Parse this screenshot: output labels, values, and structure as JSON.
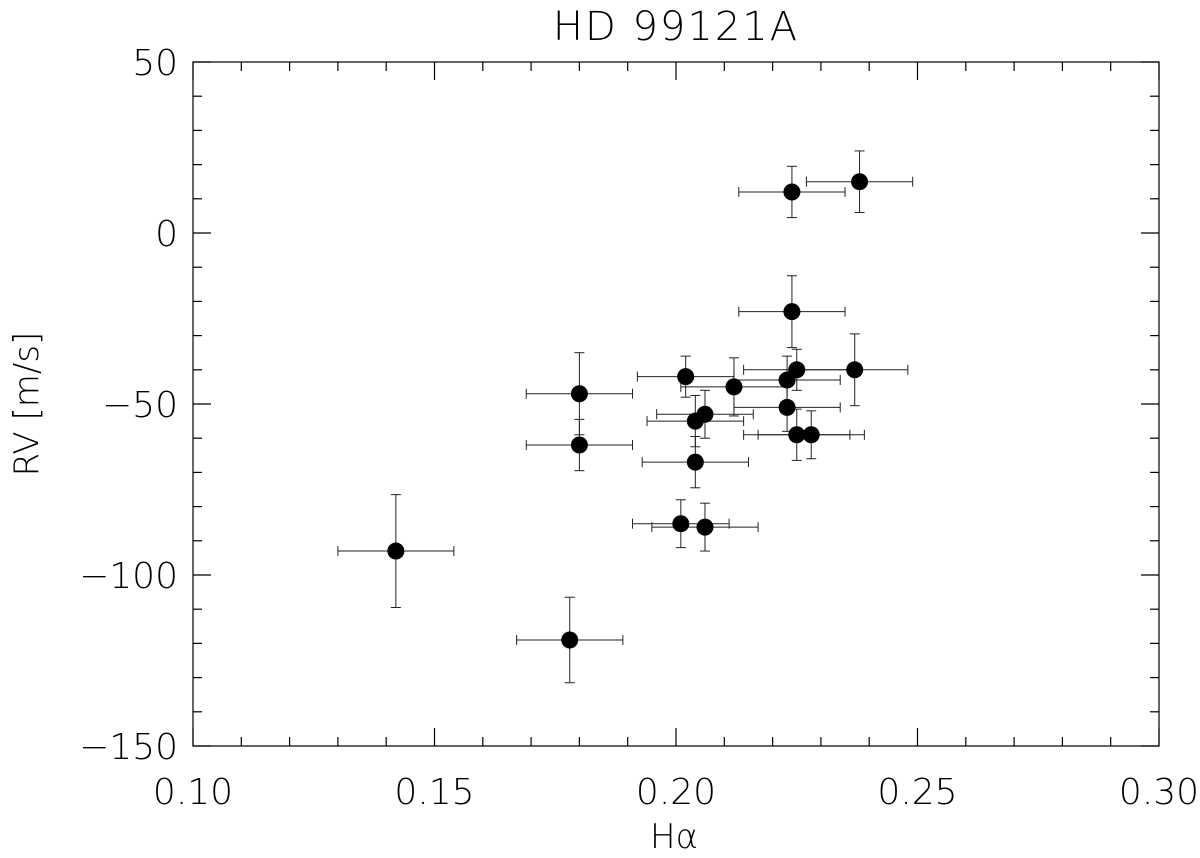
{
  "chart_data": {
    "type": "scatter",
    "title": "HD 99121A",
    "xlabel": "Hα",
    "ylabel": "RV [m/s]",
    "xlim": [
      0.1,
      0.3
    ],
    "ylim": [
      -150,
      50
    ],
    "x_ticks": [
      0.1,
      0.15,
      0.2,
      0.25,
      0.3
    ],
    "x_tick_labels": [
      "0.10",
      "0.15",
      "0.20",
      "0.25",
      "0.30"
    ],
    "y_ticks": [
      50,
      0,
      -50,
      -100,
      -150
    ],
    "y_tick_labels": [
      "50",
      "0",
      "−50",
      "−100",
      "−150"
    ],
    "x_minor_step": 0.01,
    "y_minor_step": 10,
    "grid": false,
    "marker": "filled-circle",
    "marker_color": "#000000",
    "error_bar_color": "#222222",
    "points": [
      {
        "x": 0.142,
        "y": -93,
        "xerr": 0.012,
        "yerr": 16.5
      },
      {
        "x": 0.178,
        "y": -119,
        "xerr": 0.011,
        "yerr": 12.5
      },
      {
        "x": 0.18,
        "y": -47,
        "xerr": 0.011,
        "yerr": 12
      },
      {
        "x": 0.18,
        "y": -62,
        "xerr": 0.011,
        "yerr": 7.5
      },
      {
        "x": 0.201,
        "y": -85,
        "xerr": 0.01,
        "yerr": 7
      },
      {
        "x": 0.202,
        "y": -42,
        "xerr": 0.01,
        "yerr": 6
      },
      {
        "x": 0.204,
        "y": -55,
        "xerr": 0.01,
        "yerr": 7.5
      },
      {
        "x": 0.204,
        "y": -67,
        "xerr": 0.011,
        "yerr": 7.5
      },
      {
        "x": 0.206,
        "y": -86,
        "xerr": 0.011,
        "yerr": 7
      },
      {
        "x": 0.206,
        "y": -53,
        "xerr": 0.01,
        "yerr": 7
      },
      {
        "x": 0.212,
        "y": -45,
        "xerr": 0.011,
        "yerr": 8.5
      },
      {
        "x": 0.223,
        "y": -43,
        "xerr": 0.011,
        "yerr": 7
      },
      {
        "x": 0.223,
        "y": -51,
        "xerr": 0.011,
        "yerr": 7
      },
      {
        "x": 0.224,
        "y": -23,
        "xerr": 0.011,
        "yerr": 10.5
      },
      {
        "x": 0.224,
        "y": 12,
        "xerr": 0.011,
        "yerr": 7.5
      },
      {
        "x": 0.225,
        "y": -40,
        "xerr": 0.011,
        "yerr": 6
      },
      {
        "x": 0.225,
        "y": -59,
        "xerr": 0.011,
        "yerr": 7.5
      },
      {
        "x": 0.228,
        "y": -59,
        "xerr": 0.011,
        "yerr": 7
      },
      {
        "x": 0.237,
        "y": -40,
        "xerr": 0.011,
        "yerr": 10.5
      },
      {
        "x": 0.238,
        "y": 15,
        "xerr": 0.011,
        "yerr": 9
      }
    ]
  }
}
